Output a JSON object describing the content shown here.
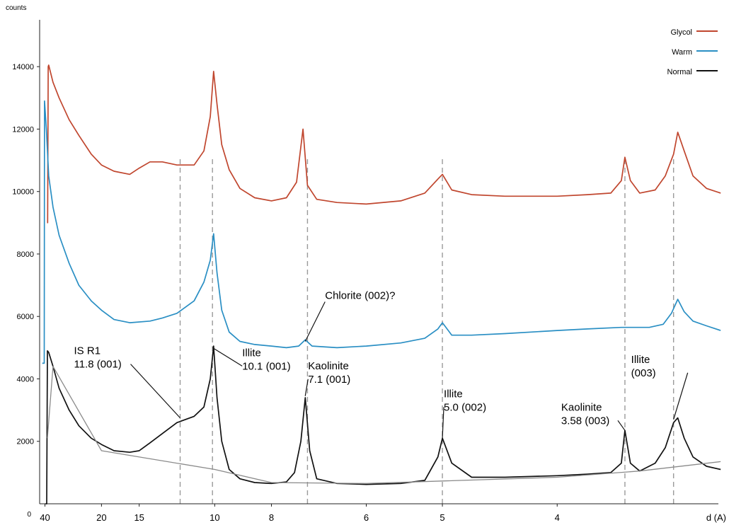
{
  "chart_data": {
    "type": "line",
    "ylabel": "counts",
    "xlabel": "d (A)",
    "ylim": [
      0,
      15500
    ],
    "y_ticks": [
      2000,
      4000,
      6000,
      8000,
      10000,
      12000,
      14000
    ],
    "y_origin_label": "0",
    "x_ticks": [
      "40",
      "20",
      "15",
      "10",
      "8",
      "6",
      "5",
      "4"
    ],
    "legend": {
      "position": "top-right",
      "entries": [
        {
          "name": "Glycol",
          "color": "#c0462e"
        },
        {
          "name": "Warm",
          "color": "#2a8fc4"
        },
        {
          "name": "Normal",
          "color": "#111111"
        }
      ]
    },
    "series": [
      {
        "name": "Glycol",
        "color": "#c0462e",
        "points": [
          [
            38.5,
            9000
          ],
          [
            38.2,
            9000
          ],
          [
            37.8,
            14000
          ],
          [
            37.5,
            14050
          ],
          [
            35,
            13500
          ],
          [
            32,
            13000
          ],
          [
            28,
            12300
          ],
          [
            25,
            11800
          ],
          [
            22,
            11200
          ],
          [
            20,
            10850
          ],
          [
            18,
            10650
          ],
          [
            16,
            10550
          ],
          [
            15,
            10750
          ],
          [
            14,
            10950
          ],
          [
            13,
            10950
          ],
          [
            12,
            10850
          ],
          [
            11,
            10850
          ],
          [
            10.5,
            11300
          ],
          [
            10.2,
            12400
          ],
          [
            10.05,
            13850
          ],
          [
            9.9,
            12800
          ],
          [
            9.7,
            11500
          ],
          [
            9.4,
            10700
          ],
          [
            9,
            10100
          ],
          [
            8.5,
            9800
          ],
          [
            8,
            9700
          ],
          [
            7.6,
            9800
          ],
          [
            7.35,
            10300
          ],
          [
            7.2,
            12000
          ],
          [
            7.1,
            10200
          ],
          [
            6.9,
            9750
          ],
          [
            6.5,
            9650
          ],
          [
            6,
            9600
          ],
          [
            5.5,
            9700
          ],
          [
            5.2,
            9950
          ],
          [
            5.05,
            10400
          ],
          [
            5.0,
            10550
          ],
          [
            4.9,
            10050
          ],
          [
            4.7,
            9900
          ],
          [
            4.4,
            9850
          ],
          [
            4.0,
            9850
          ],
          [
            3.8,
            9900
          ],
          [
            3.66,
            9950
          ],
          [
            3.6,
            10350
          ],
          [
            3.58,
            11100
          ],
          [
            3.55,
            10350
          ],
          [
            3.5,
            9950
          ],
          [
            3.42,
            10050
          ],
          [
            3.37,
            10500
          ],
          [
            3.33,
            11200
          ],
          [
            3.31,
            11900
          ],
          [
            3.28,
            11300
          ],
          [
            3.24,
            10500
          ],
          [
            3.18,
            10100
          ],
          [
            3.12,
            9950
          ]
        ]
      },
      {
        "name": "Warm",
        "color": "#2a8fc4",
        "points": [
          [
            42,
            4500
          ],
          [
            40.5,
            4500
          ],
          [
            40.3,
            12900
          ],
          [
            39,
            12000
          ],
          [
            37.5,
            10500
          ],
          [
            35,
            9500
          ],
          [
            32,
            8600
          ],
          [
            28,
            7700
          ],
          [
            25,
            7000
          ],
          [
            22,
            6500
          ],
          [
            20,
            6200
          ],
          [
            18,
            5900
          ],
          [
            16,
            5800
          ],
          [
            14,
            5850
          ],
          [
            13,
            5950
          ],
          [
            12,
            6100
          ],
          [
            11,
            6500
          ],
          [
            10.5,
            7100
          ],
          [
            10.2,
            7800
          ],
          [
            10.05,
            8650
          ],
          [
            9.9,
            7400
          ],
          [
            9.7,
            6200
          ],
          [
            9.4,
            5500
          ],
          [
            9,
            5200
          ],
          [
            8.5,
            5100
          ],
          [
            8,
            5050
          ],
          [
            7.6,
            5000
          ],
          [
            7.3,
            5050
          ],
          [
            7.15,
            5250
          ],
          [
            7.0,
            5050
          ],
          [
            6.5,
            5000
          ],
          [
            6,
            5050
          ],
          [
            5.5,
            5150
          ],
          [
            5.2,
            5300
          ],
          [
            5.05,
            5600
          ],
          [
            5.0,
            5800
          ],
          [
            4.9,
            5400
          ],
          [
            4.7,
            5400
          ],
          [
            4.4,
            5450
          ],
          [
            4.0,
            5550
          ],
          [
            3.8,
            5600
          ],
          [
            3.6,
            5650
          ],
          [
            3.45,
            5650
          ],
          [
            3.38,
            5750
          ],
          [
            3.34,
            6100
          ],
          [
            3.31,
            6550
          ],
          [
            3.28,
            6150
          ],
          [
            3.24,
            5850
          ],
          [
            3.18,
            5700
          ],
          [
            3.12,
            5550
          ]
        ]
      },
      {
        "name": "Normal",
        "color": "#111111",
        "points": [
          [
            39.5,
            0
          ],
          [
            38.8,
            0
          ],
          [
            38.6,
            2000
          ],
          [
            38.3,
            4900
          ],
          [
            37.5,
            4850
          ],
          [
            35,
            4400
          ],
          [
            32,
            3700
          ],
          [
            28,
            3000
          ],
          [
            25,
            2500
          ],
          [
            22,
            2100
          ],
          [
            20,
            1900
          ],
          [
            18,
            1700
          ],
          [
            16,
            1650
          ],
          [
            15,
            1700
          ],
          [
            14,
            1950
          ],
          [
            13,
            2250
          ],
          [
            12,
            2600
          ],
          [
            11,
            2800
          ],
          [
            10.5,
            3100
          ],
          [
            10.2,
            4000
          ],
          [
            10.05,
            5050
          ],
          [
            9.9,
            3400
          ],
          [
            9.7,
            2000
          ],
          [
            9.4,
            1100
          ],
          [
            9,
            800
          ],
          [
            8.5,
            680
          ],
          [
            8,
            650
          ],
          [
            7.6,
            700
          ],
          [
            7.4,
            1000
          ],
          [
            7.25,
            2000
          ],
          [
            7.15,
            3400
          ],
          [
            7.05,
            1700
          ],
          [
            6.9,
            800
          ],
          [
            6.5,
            650
          ],
          [
            6,
            620
          ],
          [
            5.5,
            650
          ],
          [
            5.2,
            750
          ],
          [
            5.05,
            1500
          ],
          [
            5.0,
            2100
          ],
          [
            4.9,
            1300
          ],
          [
            4.7,
            850
          ],
          [
            4.4,
            850
          ],
          [
            4.0,
            900
          ],
          [
            3.8,
            950
          ],
          [
            3.66,
            1000
          ],
          [
            3.6,
            1300
          ],
          [
            3.58,
            2350
          ],
          [
            3.55,
            1300
          ],
          [
            3.5,
            1050
          ],
          [
            3.42,
            1300
          ],
          [
            3.37,
            1800
          ],
          [
            3.33,
            2600
          ],
          [
            3.31,
            2750
          ],
          [
            3.28,
            2100
          ],
          [
            3.24,
            1500
          ],
          [
            3.18,
            1200
          ],
          [
            3.12,
            1100
          ]
        ]
      },
      {
        "name": "background",
        "color": "#8a8a8a",
        "points": [
          [
            38.3,
            2100
          ],
          [
            35,
            4400
          ],
          [
            20,
            1700
          ],
          [
            16,
            1550
          ],
          [
            10,
            1100
          ],
          [
            8,
            680
          ],
          [
            6,
            650
          ],
          [
            4,
            850
          ],
          [
            3.5,
            1050
          ],
          [
            3.12,
            1350
          ]
        ]
      }
    ],
    "reference_lines_d": [
      11.8,
      10.1,
      7.1,
      5.0,
      3.58,
      3.33
    ],
    "annotations": [
      {
        "lines": [
          "IS R1",
          "11.8 (001)"
        ],
        "x": 11.8,
        "y": 2750
      },
      {
        "lines": [
          "Illite",
          "10.1 (001)"
        ],
        "x": 10.1,
        "y": 5000
      },
      {
        "lines": [
          "Kaolinite",
          "7.1 (001)"
        ],
        "x": 7.15,
        "y": 3450
      },
      {
        "lines": [
          "Chlorite (002)?"
        ],
        "x": 7.15,
        "y": 5200
      },
      {
        "lines": [
          "Illite",
          "5.0 (002)"
        ],
        "x": 5.0,
        "y": 2100
      },
      {
        "lines": [
          "Kaolinite",
          "3.58 (003)"
        ],
        "x": 3.58,
        "y": 2350
      },
      {
        "lines": [
          "Illite",
          "(003)"
        ],
        "x": 3.33,
        "y": 2700
      }
    ]
  }
}
